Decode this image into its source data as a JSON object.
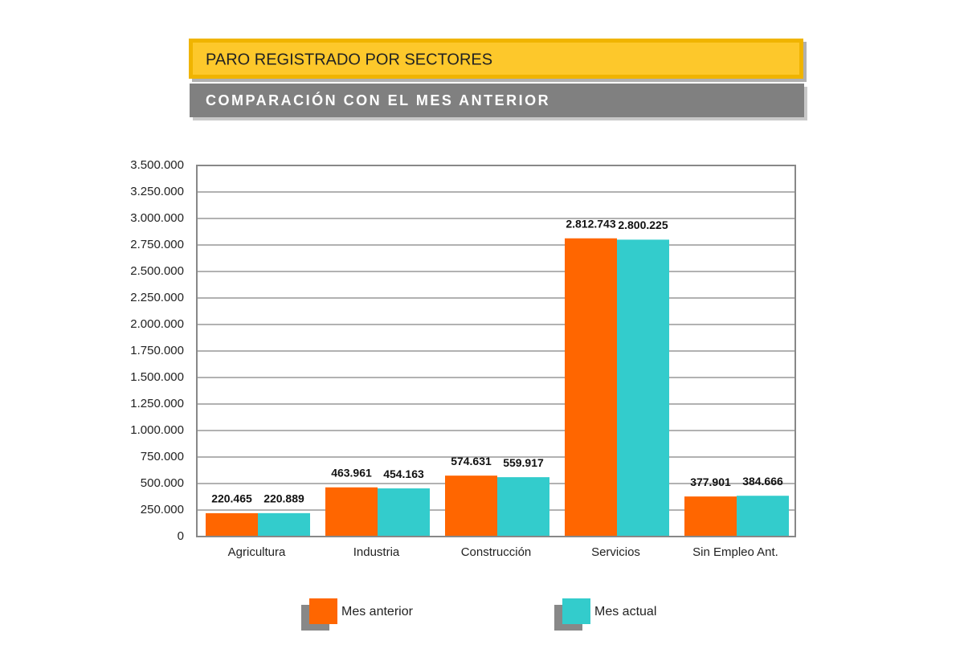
{
  "chart_data": {
    "type": "bar",
    "title": "PARO REGISTRADO POR SECTORES",
    "subtitle": "COMPARACIÓN CON EL MES ANTERIOR",
    "categories": [
      "Agricultura",
      "Industria",
      "Construcción",
      "Servicios",
      "Sin Empleo Ant."
    ],
    "series": [
      {
        "name": "Mes anterior",
        "color": "#ff6600",
        "values": [
          220465,
          463961,
          574631,
          2812743,
          377901
        ],
        "value_labels": [
          "220.465",
          "463.961",
          "574.631",
          "2.812.743",
          "377.901"
        ]
      },
      {
        "name": "Mes actual",
        "color": "#33cccc",
        "values": [
          220889,
          454163,
          559917,
          2800225,
          384666
        ],
        "value_labels": [
          "220.889",
          "454.163",
          "559.917",
          "2.800.225",
          "384.666"
        ]
      }
    ],
    "ylim": [
      0,
      3500000
    ],
    "yticks": [
      0,
      {
        "value": 250000,
        "label": "250.000"
      },
      {
        "value": 500000,
        "label": "500.000"
      },
      {
        "value": 750000,
        "label": "750.000"
      },
      {
        "value": 1000000,
        "label": "1.000.000"
      },
      {
        "value": 1250000,
        "label": "1.250.000"
      },
      {
        "value": 1500000,
        "label": "1.500.000"
      },
      {
        "value": 1750000,
        "label": "1.750.000"
      },
      {
        "value": 2000000,
        "label": "2.000.000"
      },
      {
        "value": 2250000,
        "label": "2.250.000"
      },
      {
        "value": 2500000,
        "label": "2.500.000"
      },
      {
        "value": 2750000,
        "label": "2.750.000"
      },
      {
        "value": 3000000,
        "label": "3.000.000"
      },
      {
        "value": 3250000,
        "label": "3.250.000"
      },
      {
        "value": 3500000,
        "label": "3.500.000"
      }
    ],
    "grid": true,
    "legend": "bottom"
  }
}
